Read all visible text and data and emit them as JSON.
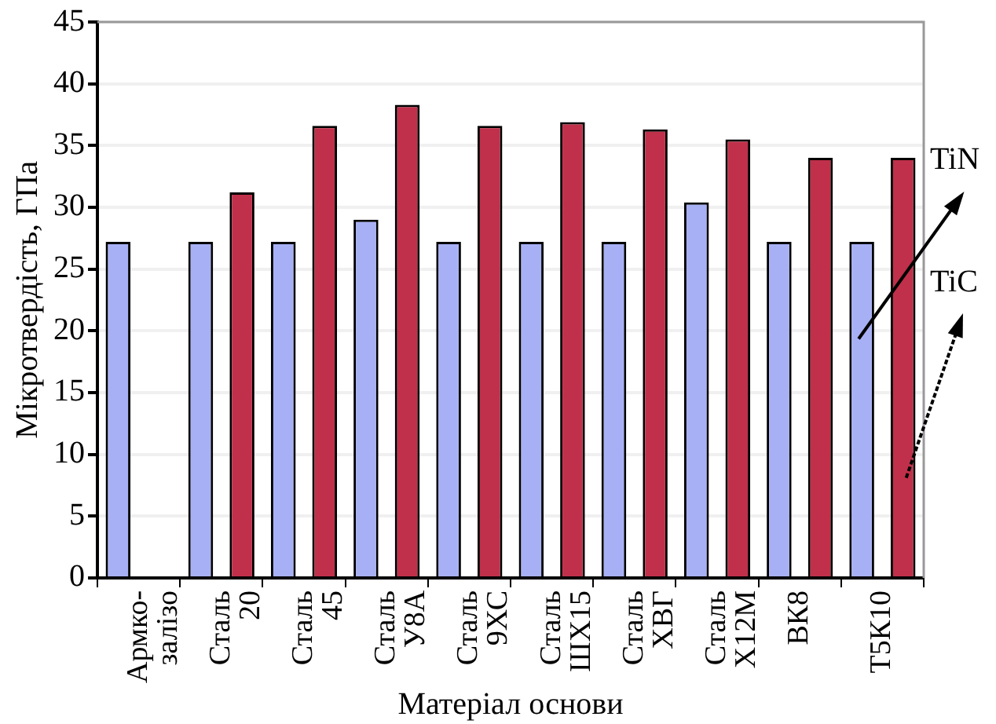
{
  "chart_data": {
    "type": "bar",
    "xlabel": "Матеріал основи",
    "ylabel": "Мікротвердість, ГПа",
    "categories": [
      "Армко-\nзалізо",
      "Сталь\n20",
      "Сталь\n45",
      "Сталь\nУ8А",
      "Сталь\n9ХС",
      "Сталь\nШХ15",
      "Сталь\nХВГ",
      "Сталь\nХ12М",
      "ВК8",
      "Т5К10"
    ],
    "series": [
      {
        "name": "TiN",
        "color": "#a8b0f5",
        "values": [
          27.2,
          27.2,
          27.2,
          29.0,
          27.2,
          27.2,
          27.2,
          30.4,
          27.2,
          27.2
        ]
      },
      {
        "name": "TiC",
        "color": "#c0304a",
        "values": [
          null,
          31.2,
          36.6,
          38.3,
          36.6,
          36.9,
          36.3,
          35.5,
          34.0,
          34.0
        ]
      }
    ],
    "ylim": [
      0,
      45
    ],
    "yticks": [
      0,
      5,
      10,
      15,
      20,
      25,
      30,
      35,
      40,
      45
    ],
    "grid": "y",
    "legend": false
  }
}
